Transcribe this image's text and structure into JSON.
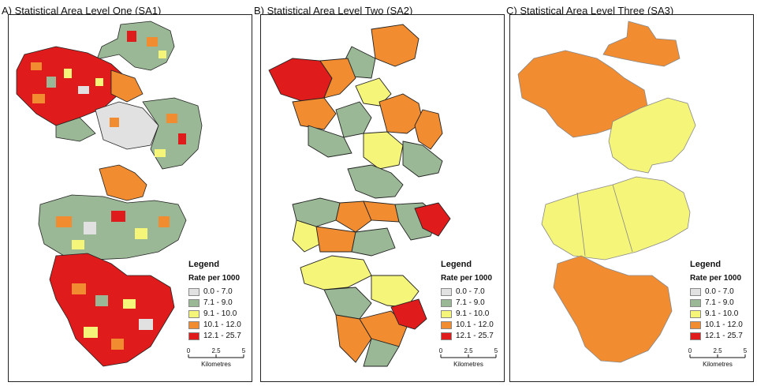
{
  "panels": [
    {
      "id": "sa1",
      "title": "A) Statistical Area Level One (SA1)"
    },
    {
      "id": "sa2",
      "title": "B) Statistical Area Level Two (SA2)"
    },
    {
      "id": "sa3",
      "title": "C) Statistical Area Level Three (SA3)"
    }
  ],
  "legend": {
    "title": "Legend",
    "subtitle": "Rate per 1000",
    "classes": [
      {
        "label": "0.0 - 7.0",
        "color": "#e1e1e1"
      },
      {
        "label": "7.1 - 9.0",
        "color": "#9ab895"
      },
      {
        "label": "9.1 - 10.0",
        "color": "#f5f57a"
      },
      {
        "label": "10.1 - 12.0",
        "color": "#f28c30"
      },
      {
        "label": "12.1 - 25.7",
        "color": "#e01b1b"
      }
    ]
  },
  "scale": {
    "ticks": [
      "0",
      "2.5",
      "5"
    ],
    "unit": "Kilometres"
  }
}
